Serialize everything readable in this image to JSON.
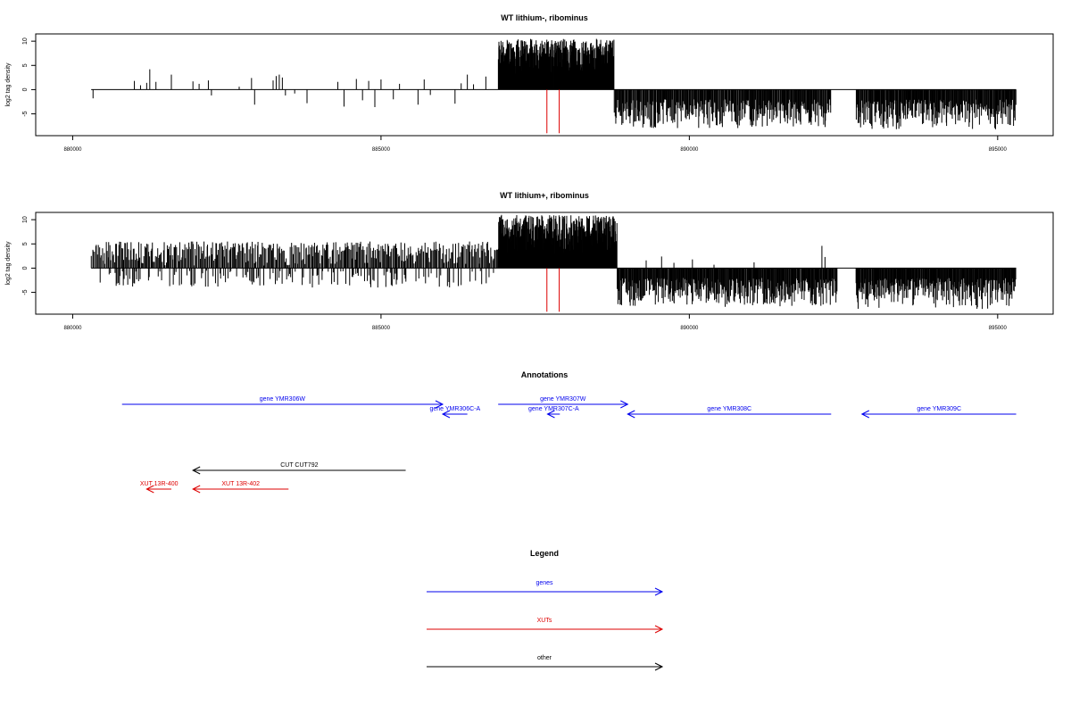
{
  "chart_data": [
    {
      "type": "bar",
      "title": "WT lithium-, ribominus",
      "ylabel": "log2 tag density",
      "xlim": [
        879400,
        895900
      ],
      "ylim": [
        -9.5,
        11.5
      ],
      "x_ticks": [
        880000,
        885000,
        890000,
        895000
      ],
      "x_tick_labels": [
        "880000",
        "885000",
        "890000",
        "895000"
      ],
      "y_ticks": [
        -5,
        0,
        5,
        10
      ],
      "y_tick_labels": [
        "-5",
        "0",
        "5",
        "10"
      ],
      "baseline_range": [
        880300,
        895300
      ],
      "series": [
        {
          "color": "#000000",
          "points": [
            [
              880330,
              -1.8
            ],
            [
              881000,
              1.8
            ],
            [
              881100,
              0.9
            ],
            [
              881200,
              1.4
            ],
            [
              881250,
              4.2
            ],
            [
              881350,
              1.6
            ],
            [
              881600,
              3.1
            ],
            [
              881950,
              1.7
            ],
            [
              882050,
              1.2
            ],
            [
              882200,
              1.9
            ],
            [
              882250,
              -1.2
            ],
            [
              882700,
              0.6
            ],
            [
              882900,
              2.4
            ],
            [
              882950,
              -3.1
            ],
            [
              883250,
              1.9
            ],
            [
              883300,
              2.8
            ],
            [
              883350,
              3.1
            ],
            [
              883400,
              2.5
            ],
            [
              883450,
              -1.2
            ],
            [
              883600,
              -0.8
            ],
            [
              883800,
              -2.8
            ],
            [
              884300,
              1.6
            ],
            [
              884400,
              -3.5
            ],
            [
              884600,
              2.2
            ],
            [
              884700,
              -2.2
            ],
            [
              884800,
              1.8
            ],
            [
              884900,
              -3.6
            ],
            [
              885000,
              2.1
            ],
            [
              885200,
              -2.0
            ],
            [
              885300,
              1.2
            ],
            [
              885600,
              -3.1
            ],
            [
              885700,
              2.1
            ],
            [
              885800,
              -1.1
            ],
            [
              886200,
              -2.9
            ],
            [
              886300,
              1.3
            ],
            [
              886400,
              3.1
            ],
            [
              886500,
              1.1
            ],
            [
              886700,
              2.7
            ]
          ],
          "dense_segments": [
            {
              "x_range": [
                886900,
                888780
              ],
              "y_range": [
                3.0,
                10.5
              ],
              "count": 340
            },
            {
              "x_range": [
                888780,
                892300
              ],
              "y_range": [
                -8.0,
                -2.0
              ],
              "count": 330
            },
            {
              "x_range": [
                892700,
                895300
              ],
              "y_range": [
                -8.3,
                -2.0
              ],
              "count": 260
            }
          ]
        },
        {
          "color": "#dd0000",
          "points": [
            [
              887690,
              -9.0
            ],
            [
              887890,
              -9.0
            ]
          ]
        }
      ]
    },
    {
      "type": "bar",
      "title": "WT lithium+, ribominus",
      "ylabel": "log2 tag density",
      "xlim": [
        879400,
        895900
      ],
      "ylim": [
        -9.5,
        11.5
      ],
      "x_ticks": [
        880000,
        885000,
        890000,
        895000
      ],
      "x_tick_labels": [
        "880000",
        "885000",
        "890000",
        "895000"
      ],
      "y_ticks": [
        -5,
        0,
        5,
        10
      ],
      "y_tick_labels": [
        "-5",
        "0",
        "5",
        "10"
      ],
      "baseline_range": [
        880300,
        895300
      ],
      "series": [
        {
          "color": "#000000",
          "dense_segments": [
            {
              "x_range": [
                880300,
                886900
              ],
              "y_range": [
                0.5,
                5.5
              ],
              "count": 420,
              "mixed_negative": [
                -4.0,
                -0.5
              ]
            },
            {
              "x_range": [
                886900,
                888830
              ],
              "y_range": [
                3.0,
                11.0
              ],
              "count": 360
            },
            {
              "x_range": [
                888830,
                892400
              ],
              "y_range": [
                -8.0,
                -2.0
              ],
              "count": 360
            },
            {
              "x_range": [
                892700,
                895300
              ],
              "y_range": [
                -8.5,
                -2.0
              ],
              "count": 280
            }
          ],
          "points": [
            [
              889300,
              1.6
            ],
            [
              889550,
              2.4
            ],
            [
              889750,
              1.1
            ],
            [
              890050,
              1.8
            ],
            [
              890400,
              0.7
            ],
            [
              891050,
              1.2
            ],
            [
              892150,
              4.6
            ],
            [
              892200,
              2.3
            ]
          ]
        },
        {
          "color": "#dd0000",
          "points": [
            [
              887690,
              -9.0
            ],
            [
              887890,
              -9.0
            ]
          ]
        }
      ]
    }
  ],
  "annotations": {
    "title": "Annotations",
    "genes_color": "#0000ee",
    "xuts_color": "#dd0000",
    "other_color": "#000000",
    "items": [
      {
        "label": "gene YMR306W",
        "start": 880800,
        "end": 886000,
        "row": 0,
        "category": "genes"
      },
      {
        "label": "gene YMR306C-A",
        "start": 886400,
        "end": 886000,
        "row": 1,
        "category": "genes"
      },
      {
        "label": "gene YMR307W",
        "start": 886900,
        "end": 889000,
        "row": 0,
        "category": "genes"
      },
      {
        "label": "gene YMR307C-A",
        "start": 887900,
        "end": 887700,
        "row": 1,
        "category": "genes"
      },
      {
        "label": "gene YMR308C",
        "start": 892300,
        "end": 889000,
        "row": 1,
        "category": "genes"
      },
      {
        "label": "gene YMR309C",
        "start": 895300,
        "end": 892800,
        "row": 1,
        "category": "genes"
      },
      {
        "label": "CUT CUT792",
        "start": 885400,
        "end": 881950,
        "row": 2,
        "category": "other"
      },
      {
        "label": "XUT 13R-400",
        "start": 881600,
        "end": 881200,
        "row": 3,
        "category": "xuts"
      },
      {
        "label": "XUT 13R-402",
        "start": 883500,
        "end": 881950,
        "row": 3,
        "category": "xuts"
      }
    ]
  },
  "legend": {
    "title": "Legend",
    "items": [
      {
        "label": "genes",
        "color": "#0000ee"
      },
      {
        "label": "XUTs",
        "color": "#dd0000"
      },
      {
        "label": "other",
        "color": "#000000"
      }
    ]
  }
}
